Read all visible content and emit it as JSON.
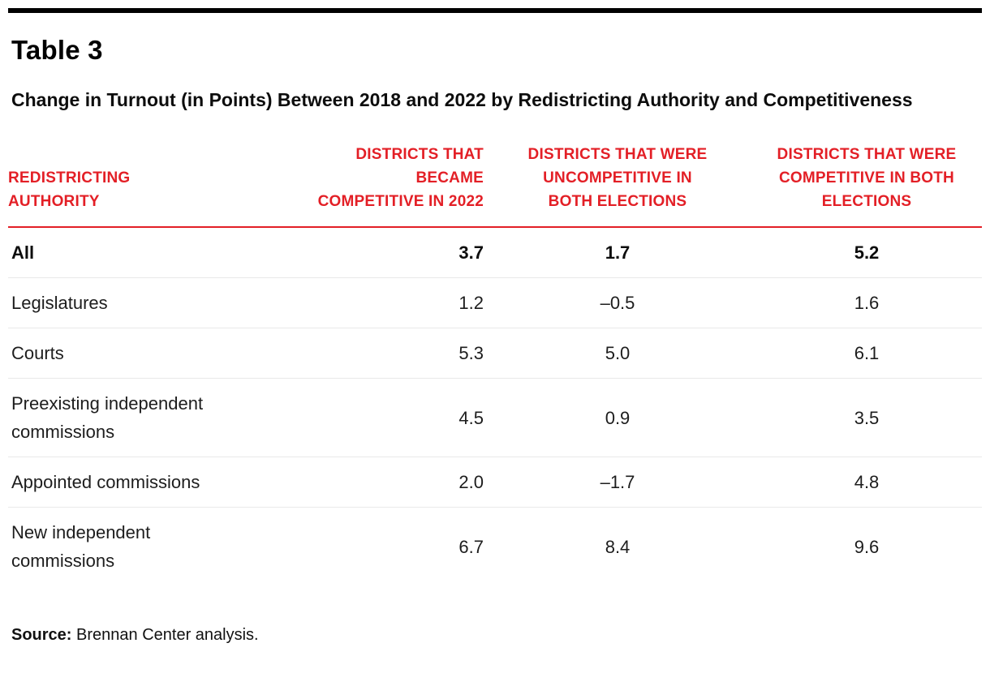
{
  "colors": {
    "accent_red": "#e31f26",
    "top_bar": "#000000",
    "row_divider": "#e9e9e9"
  },
  "header": {
    "title": "Table 3",
    "subtitle": "Change in Turnout (in Points) Between 2018 and 2022 by Redistricting Authority and Competitiveness"
  },
  "chart_data": {
    "type": "table",
    "title": "Table 3",
    "subtitle": "Change in Turnout (in Points) Between 2018 and 2022 by Redistricting Authority and Competitiveness",
    "columns": [
      {
        "label": "REDISTRICTING\nAUTHORITY",
        "align": "left"
      },
      {
        "label": "DISTRICTS THAT\nBECAME\nCOMPETITIVE IN 2022",
        "align": "right"
      },
      {
        "label": "DISTRICTS THAT WERE\nUNCOMPETITIVE IN\nBOTH ELECTIONS",
        "align": "center"
      },
      {
        "label": "DISTRICTS THAT WERE\nCOMPETITIVE IN BOTH\nELECTIONS",
        "align": "center"
      }
    ],
    "rows": [
      {
        "label": "All",
        "emphasis": true,
        "values": [
          "3.7",
          "1.7",
          "5.2"
        ]
      },
      {
        "label": "Legislatures",
        "emphasis": false,
        "values": [
          "1.2",
          "–0.5",
          "1.6"
        ]
      },
      {
        "label": "Courts",
        "emphasis": false,
        "values": [
          "5.3",
          "5.0",
          "6.1"
        ]
      },
      {
        "label": "Preexisting independent\ncommissions",
        "emphasis": false,
        "values": [
          "4.5",
          "0.9",
          "3.5"
        ]
      },
      {
        "label": "Appointed commissions",
        "emphasis": false,
        "values": [
          "2.0",
          "–1.7",
          "4.8"
        ]
      },
      {
        "label": "New independent\ncommissions",
        "emphasis": false,
        "values": [
          "6.7",
          "8.4",
          "9.6"
        ]
      }
    ]
  },
  "source": {
    "label": "Source:",
    "text": " Brennan Center analysis."
  }
}
